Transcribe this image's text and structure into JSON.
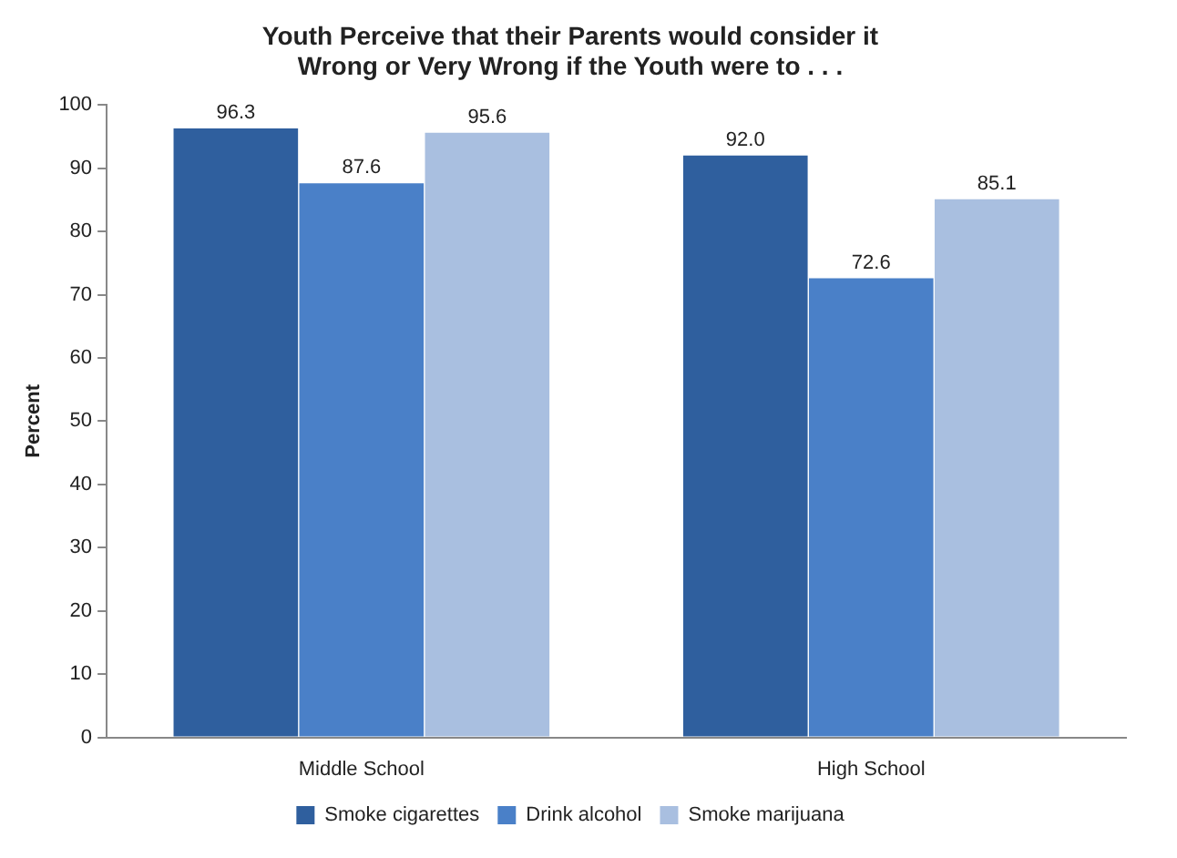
{
  "chart_data": {
    "type": "bar",
    "title": "Youth Perceive that their Parents would consider it\nWrong or Very Wrong if the Youth were to . . .",
    "ylabel": "Percent",
    "categories": [
      "Middle School",
      "High School"
    ],
    "series": [
      {
        "name": "Smoke cigarettes",
        "color": "#2f5f9e",
        "values": [
          96.3,
          92.0
        ]
      },
      {
        "name": "Drink alcohol",
        "color": "#4a80c8",
        "values": [
          87.6,
          72.6
        ]
      },
      {
        "name": "Smoke marijuana",
        "color": "#a9bfe0",
        "values": [
          95.6,
          85.1
        ]
      }
    ],
    "ylim": [
      0,
      100
    ],
    "yticks": [
      0,
      10,
      20,
      30,
      40,
      50,
      60,
      70,
      80,
      90,
      100
    ],
    "value_labels": [
      [
        "96.3",
        "92.0"
      ],
      [
        "87.6",
        "72.6"
      ],
      [
        "95.6",
        "85.1"
      ]
    ],
    "grid": false,
    "legend": "bottom"
  }
}
